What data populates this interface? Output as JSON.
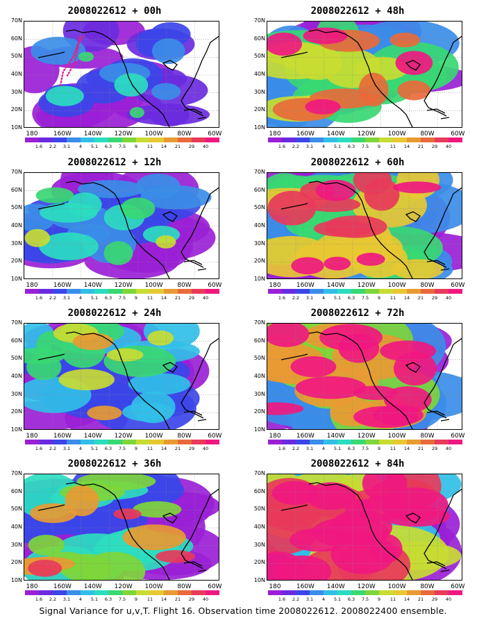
{
  "panels": [
    {
      "title": "2008022612 + 00h",
      "lead": "00h",
      "intensity": 0.6
    },
    {
      "title": "2008022612 + 48h",
      "lead": "48h",
      "intensity": 2.4
    },
    {
      "title": "2008022612 + 12h",
      "lead": "12h",
      "intensity": 1.0
    },
    {
      "title": "2008022612 + 60h",
      "lead": "60h",
      "intensity": 2.8
    },
    {
      "title": "2008022612 + 24h",
      "lead": "24h",
      "intensity": 1.6
    },
    {
      "title": "2008022612 + 72h",
      "lead": "72h",
      "intensity": 3.2
    },
    {
      "title": "2008022612 + 36h",
      "lead": "36h",
      "intensity": 2.0
    },
    {
      "title": "2008022612 + 84h",
      "lead": "84h",
      "intensity": 3.6
    }
  ],
  "y_axis_labels": [
    "70N",
    "60N",
    "50N",
    "40N",
    "30N",
    "20N",
    "10N"
  ],
  "x_axis_labels": [
    "180",
    "160W",
    "140W",
    "120W",
    "100W",
    "80W",
    "60W"
  ],
  "colorbar": {
    "labels": [
      "1.6",
      "2.2",
      "3.1",
      "4",
      "5.1",
      "6.3",
      "7.5",
      "9",
      "11",
      "14",
      "21",
      "29",
      "40"
    ],
    "colors": [
      "#9a1fd6",
      "#6a2be0",
      "#3b45e8",
      "#3a8de8",
      "#31bfe8",
      "#2cdcc0",
      "#38d873",
      "#7ed63a",
      "#c8dc32",
      "#e8c832",
      "#e89a32",
      "#e86a3a",
      "#e83a5a",
      "#f01880"
    ]
  },
  "caption": "Signal Variance for u,v,T. Flight 16. Observation time 2008022612. 2008022400 ensemble."
}
